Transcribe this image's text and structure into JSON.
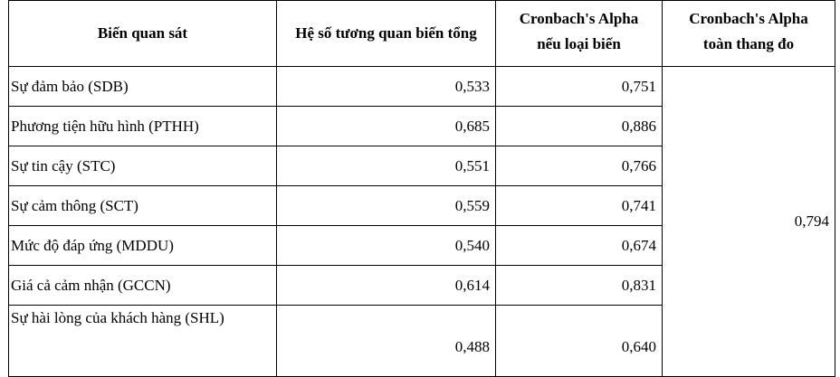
{
  "table": {
    "header": [
      [
        "Biến quan sát"
      ],
      [
        "Hệ số tương quan biến tổng"
      ],
      [
        "Cronbach's Alpha",
        "nếu loại biến"
      ],
      [
        "Cronbach's Alpha",
        "toàn thang đo"
      ]
    ],
    "rows": [
      [
        "Sự đảm bảo (SDB)",
        "0,533",
        "0,751"
      ],
      [
        "Phương tiện hữu hình (PTHH)",
        "0,685",
        "0,886"
      ],
      [
        "Sự tin cậy (STC)",
        "0,551",
        "0,766"
      ],
      [
        "Sự cảm thông (SCT)",
        "0,559",
        "0,741"
      ],
      [
        "Mức độ đáp ứng (MDDU)",
        "0,540",
        "0,674"
      ],
      [
        "Giá cả cảm nhận (GCCN)",
        "0,614",
        "0,831"
      ],
      [
        "Sự hài lòng của khách hàng (SHL)",
        "0,488",
        "0,640"
      ]
    ],
    "overall": "0,794"
  }
}
